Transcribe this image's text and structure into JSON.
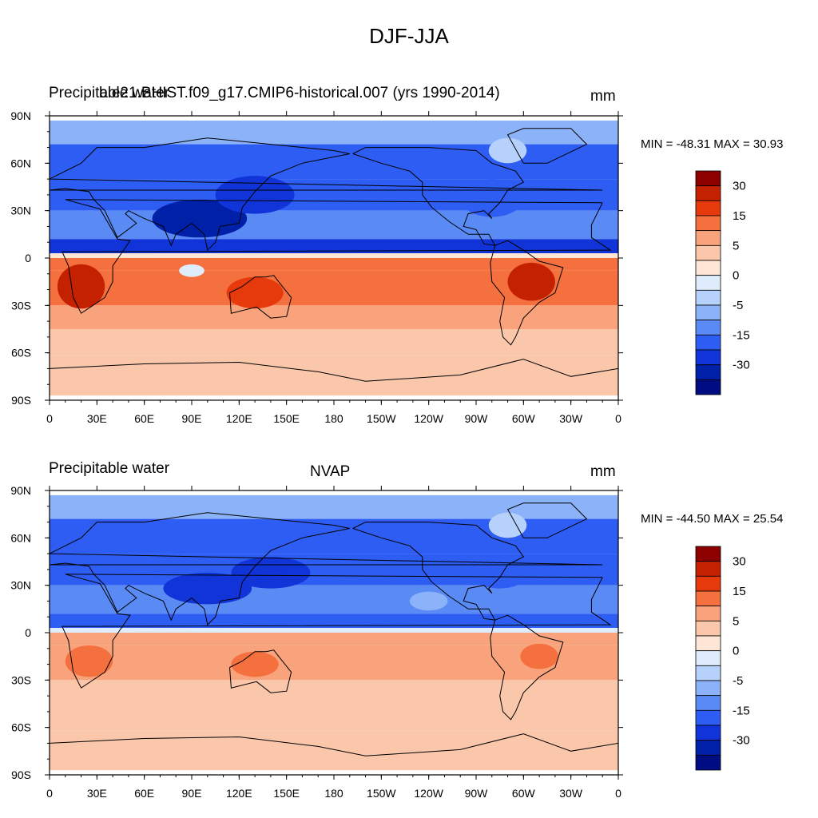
{
  "figure": {
    "title": "DJF-JJA"
  },
  "chart_data": [
    {
      "type": "heatmap",
      "left_label": "Precipitable water",
      "center_label": "b.e21.BHIST.f09_g17.CMIP6-historical.007 (yrs 1990-2014)",
      "units": "mm",
      "min_max_text": "MIN = -48.31 MAX =  30.93",
      "min": -48.31,
      "max": 30.93,
      "x_ticks": [
        "0",
        "30E",
        "60E",
        "90E",
        "120E",
        "150E",
        "180",
        "150W",
        "120W",
        "90W",
        "60W",
        "30W",
        "0"
      ],
      "y_ticks": [
        "90N",
        "60N",
        "30N",
        "0",
        "30S",
        "60S",
        "90S"
      ],
      "colorbar_labels": [
        "30",
        "15",
        "5",
        "0",
        "-5",
        "-15",
        "-30"
      ],
      "colorbar_colors": [
        "#8c0000",
        "#c42100",
        "#e63a0c",
        "#f4703e",
        "#f8a37b",
        "#fbc7ab",
        "#fde6d6",
        "#deecfb",
        "#b6d1fb",
        "#8cb3f9",
        "#5a8bf4",
        "#2d5df2",
        "#1034d8",
        "#0020a8",
        "#000c82"
      ],
      "bands": [
        {
          "lat_top": 90,
          "lat_bot": 72,
          "value": -8
        },
        {
          "lat_top": 72,
          "lat_bot": 50,
          "value": -20
        },
        {
          "lat_top": 50,
          "lat_bot": 30,
          "value": -25
        },
        {
          "lat_top": 30,
          "lat_bot": 12,
          "value": -15
        },
        {
          "lat_top": 12,
          "lat_bot": 3,
          "value": -28
        },
        {
          "lat_top": 3,
          "lat_bot": 0,
          "value": 1
        },
        {
          "lat_top": 0,
          "lat_bot": -8,
          "value": 12
        },
        {
          "lat_top": -8,
          "lat_bot": -30,
          "value": 10
        },
        {
          "lat_top": -30,
          "lat_bot": -45,
          "value": 7
        },
        {
          "lat_top": -45,
          "lat_bot": -62,
          "value": 4
        },
        {
          "lat_top": -62,
          "lat_bot": -90,
          "value": 2
        }
      ],
      "blobs": [
        {
          "lon": 95,
          "lat": 25,
          "rx": 30,
          "ry": 12,
          "value": -32
        },
        {
          "lon": 130,
          "lat": 40,
          "rx": 25,
          "ry": 12,
          "value": -30
        },
        {
          "lon": 280,
          "lat": 38,
          "rx": 20,
          "ry": 12,
          "value": -25
        },
        {
          "lon": 20,
          "lat": -18,
          "rx": 15,
          "ry": 14,
          "value": 25
        },
        {
          "lon": 130,
          "lat": -22,
          "rx": 18,
          "ry": 10,
          "value": 20
        },
        {
          "lon": 305,
          "lat": -15,
          "rx": 15,
          "ry": 12,
          "value": 25
        },
        {
          "lon": 290,
          "lat": 68,
          "rx": 12,
          "ry": 8,
          "value": -5
        },
        {
          "lon": 90,
          "lat": -8,
          "rx": 8,
          "ry": 4,
          "value": -2
        }
      ]
    },
    {
      "type": "heatmap",
      "left_label": "Precipitable water",
      "center_label": "NVAP",
      "units": "mm",
      "min_max_text": "MIN = -44.50 MAX =  25.54",
      "min": -44.5,
      "max": 25.54,
      "x_ticks": [
        "0",
        "30E",
        "60E",
        "90E",
        "120E",
        "150E",
        "180",
        "150W",
        "120W",
        "90W",
        "60W",
        "30W",
        "0"
      ],
      "y_ticks": [
        "90N",
        "60N",
        "30N",
        "0",
        "30S",
        "60S",
        "90S"
      ],
      "colorbar_labels": [
        "30",
        "15",
        "5",
        "0",
        "-5",
        "-15",
        "-30"
      ],
      "colorbar_colors": [
        "#8c0000",
        "#c42100",
        "#e63a0c",
        "#f4703e",
        "#f8a37b",
        "#fbc7ab",
        "#fde6d6",
        "#deecfb",
        "#b6d1fb",
        "#8cb3f9",
        "#5a8bf4",
        "#2d5df2",
        "#1034d8",
        "#0020a8",
        "#000c82"
      ],
      "bands": [
        {
          "lat_top": 90,
          "lat_bot": 72,
          "value": -8
        },
        {
          "lat_top": 72,
          "lat_bot": 50,
          "value": -18
        },
        {
          "lat_top": 50,
          "lat_bot": 30,
          "value": -22
        },
        {
          "lat_top": 30,
          "lat_bot": 12,
          "value": -15
        },
        {
          "lat_top": 12,
          "lat_bot": 3,
          "value": -18
        },
        {
          "lat_top": 3,
          "lat_bot": 0,
          "value": -1
        },
        {
          "lat_top": 0,
          "lat_bot": -8,
          "value": 8
        },
        {
          "lat_top": -8,
          "lat_bot": -30,
          "value": 7
        },
        {
          "lat_top": -30,
          "lat_bot": -45,
          "value": 5
        },
        {
          "lat_top": -45,
          "lat_bot": -62,
          "value": 4
        },
        {
          "lat_top": -62,
          "lat_bot": -90,
          "value": 2
        }
      ],
      "blobs": [
        {
          "lon": 100,
          "lat": 28,
          "rx": 28,
          "ry": 10,
          "value": -30
        },
        {
          "lon": 140,
          "lat": 38,
          "rx": 25,
          "ry": 10,
          "value": -28
        },
        {
          "lon": 285,
          "lat": 38,
          "rx": 18,
          "ry": 10,
          "value": -22
        },
        {
          "lon": 25,
          "lat": -18,
          "rx": 15,
          "ry": 10,
          "value": 18
        },
        {
          "lon": 130,
          "lat": -20,
          "rx": 15,
          "ry": 8,
          "value": 18
        },
        {
          "lon": 310,
          "lat": -15,
          "rx": 12,
          "ry": 8,
          "value": 14
        },
        {
          "lon": 290,
          "lat": 68,
          "rx": 12,
          "ry": 8,
          "value": -5
        },
        {
          "lon": 240,
          "lat": 20,
          "rx": 12,
          "ry": 6,
          "value": -8
        }
      ]
    }
  ]
}
